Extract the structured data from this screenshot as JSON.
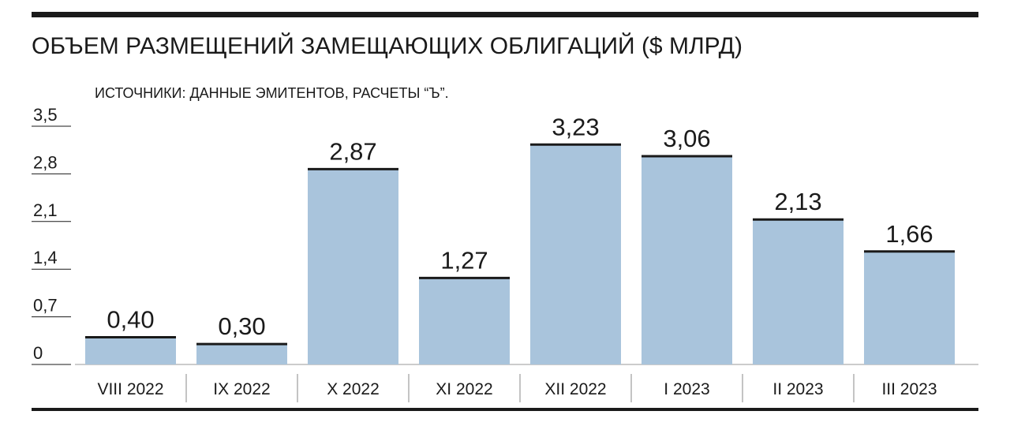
{
  "chart_data": {
    "type": "bar",
    "title": "ОБЪЕМ РАЗМЕЩЕНИЙ ЗАМЕЩАЮЩИХ ОБЛИГАЦИЙ ($ МЛРД)",
    "subtitle": "ИСТОЧНИКИ: ДАННЫЕ ЭМИТЕНТОВ, РАСЧЕТЫ “Ъ”.",
    "categories": [
      "VIII 2022",
      "IX 2022",
      "X 2022",
      "XI 2022",
      "XII 2022",
      "I 2023",
      "II 2023",
      "III 2023"
    ],
    "values": [
      0.4,
      0.3,
      2.87,
      1.27,
      3.23,
      3.06,
      2.13,
      1.66
    ],
    "value_labels": [
      "0,40",
      "0,30",
      "2,87",
      "1,27",
      "3,23",
      "3,06",
      "2,13",
      "1,66"
    ],
    "color": "#a9c4dc",
    "ylim": [
      0,
      3.5
    ],
    "yticks": [
      0,
      {
        "value": 0.7,
        "label": "0,7"
      },
      {
        "value": 1.4,
        "label": "1,4"
      },
      {
        "value": 2.1,
        "label": "2,1"
      },
      {
        "value": 2.8,
        "label": "2,8"
      },
      {
        "value": 3.5,
        "label": "3,5"
      }
    ]
  }
}
